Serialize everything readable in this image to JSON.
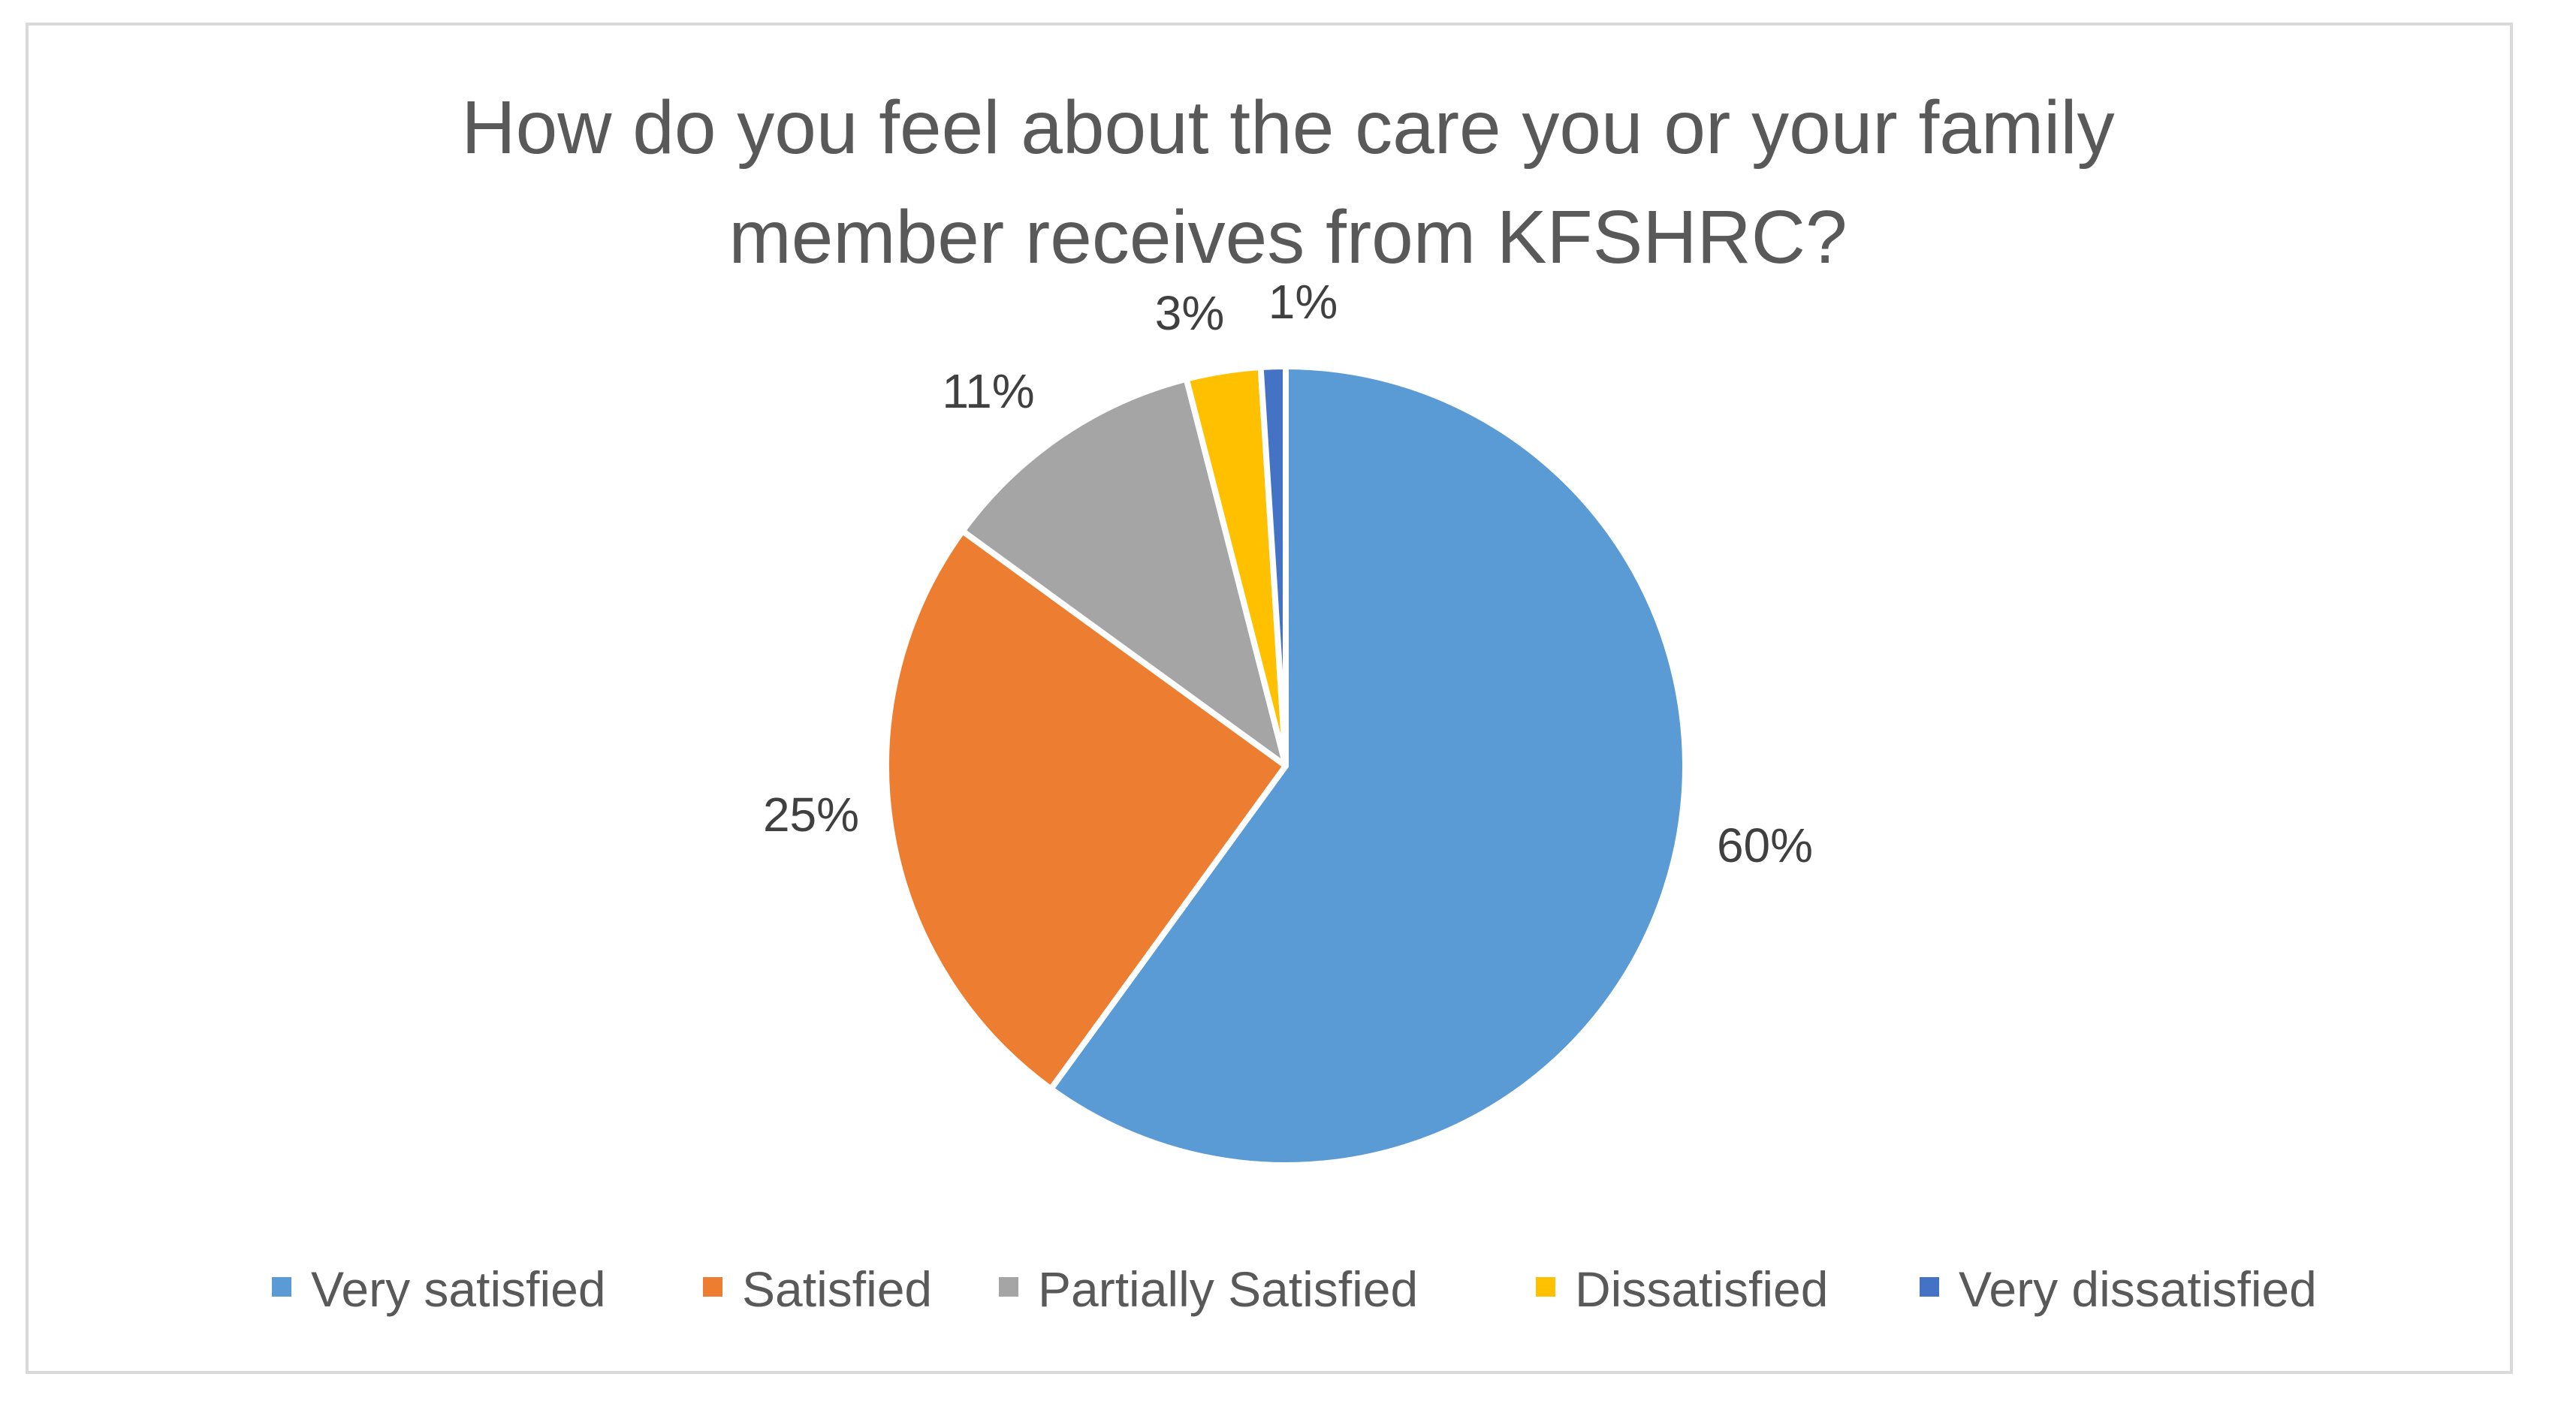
{
  "chart_data": {
    "type": "pie",
    "title": "How do you feel about the care you or your family member receives from KFSHRC?",
    "title_lines": [
      "How do you feel about the care you or your family",
      "member receives from KFSHRC?"
    ],
    "categories": [
      "Very satisfied",
      "Satisfied",
      "Partially Satisfied",
      "Dissatisfied",
      "Very dissatisfied"
    ],
    "values": [
      60,
      25,
      11,
      3,
      1
    ],
    "labels": [
      "60%",
      "25%",
      "11%",
      "3%",
      "1%"
    ],
    "colors": [
      "#5b9bd5",
      "#ed7d31",
      "#a5a5a5",
      "#ffc000",
      "#4472c4"
    ],
    "legend_position": "bottom",
    "start_angle": "top",
    "direction": "clockwise"
  }
}
